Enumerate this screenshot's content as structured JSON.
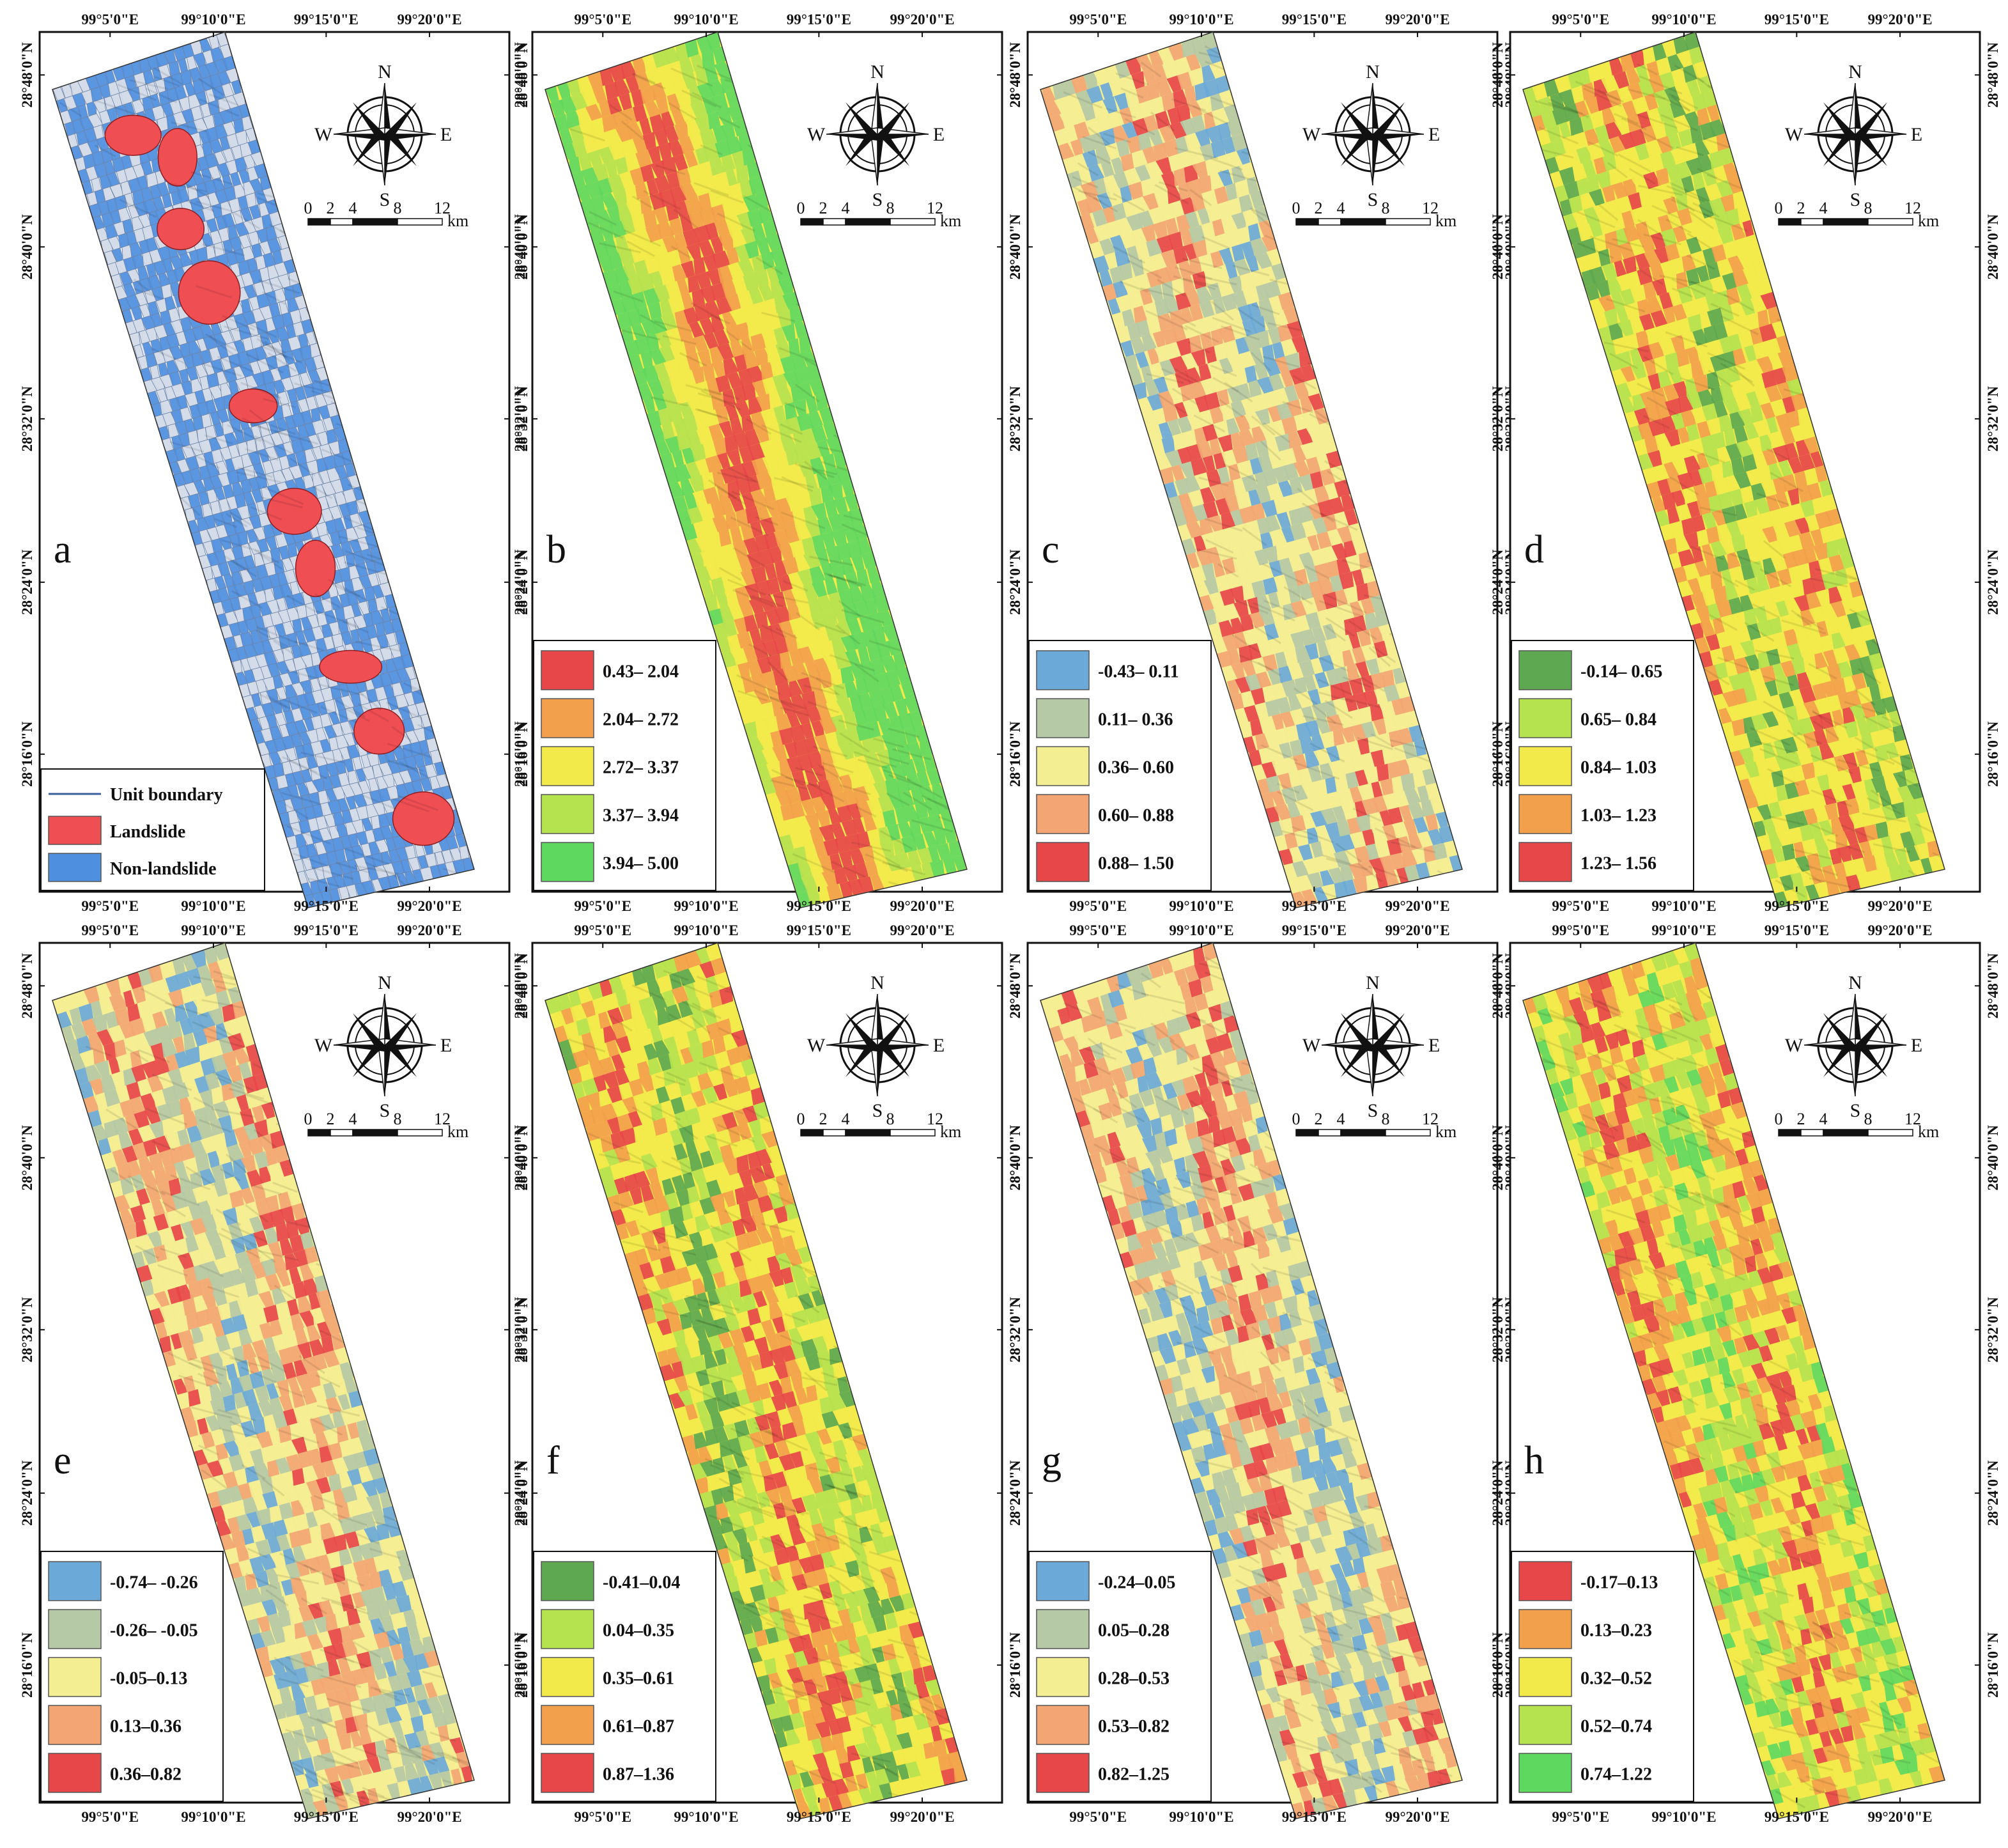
{
  "figure": {
    "lon_ticks": [
      "99°5'0\"E",
      "99°10'0\"E",
      "99°15'0\"E",
      "99°20'0\"E"
    ],
    "lat_ticks": [
      "28°48'0\"N",
      "28°40'0\"N",
      "28°32'0\"N",
      "28°24'0\"N",
      "28°16'0\"N"
    ],
    "compass": {
      "n": "N",
      "s": "S",
      "e": "E",
      "w": "W"
    },
    "scale_bar": {
      "labels": [
        "0",
        "2",
        "4",
        "8",
        "12"
      ],
      "unit": "km"
    }
  },
  "colors": {
    "red": "#e8474a",
    "orange": "#f3a04c",
    "yellow": "#f2ea4b",
    "lime": "#b5e24f",
    "green": "#5fd85f",
    "dark_green": "#5da850",
    "blue": "#6aa9d8",
    "sage": "#b5c9a6",
    "pale_yellow": "#f4ee93",
    "salmon": "#f3a673",
    "unit_blue": "#4f8fe0",
    "landslide_red": "#ef4e53"
  },
  "panels": [
    {
      "letter": "a",
      "style": "units",
      "legend": [
        {
          "label": "Unit boundary",
          "symbol": "line",
          "color": "#3a5f9a"
        },
        {
          "label": "Landslide",
          "symbol": "box",
          "color": "#ef4e53"
        },
        {
          "label": "Non-landslide",
          "symbol": "box",
          "color": "#4f8fe0"
        }
      ]
    },
    {
      "letter": "b",
      "style": "bands",
      "legend": [
        {
          "label": "0.43– 2.04",
          "color": "#e8474a"
        },
        {
          "label": "2.04– 2.72",
          "color": "#f3a04c"
        },
        {
          "label": "2.72– 3.37",
          "color": "#f2ea4b"
        },
        {
          "label": "3.37– 3.94",
          "color": "#b5e24f"
        },
        {
          "label": "3.94– 5.00",
          "color": "#5fd85f"
        }
      ]
    },
    {
      "letter": "c",
      "style": "mosaic",
      "legend": [
        {
          "label": "-0.43– 0.11",
          "color": "#6aa9d8"
        },
        {
          "label": "0.11– 0.36",
          "color": "#b5c9a6"
        },
        {
          "label": "0.36– 0.60",
          "color": "#f4ee93"
        },
        {
          "label": "0.60– 0.88",
          "color": "#f3a673"
        },
        {
          "label": "0.88– 1.50",
          "color": "#e8474a"
        }
      ]
    },
    {
      "letter": "d",
      "style": "mosaic",
      "legend": [
        {
          "label": "-0.14– 0.65",
          "color": "#5da850"
        },
        {
          "label": "0.65– 0.84",
          "color": "#b5e24f"
        },
        {
          "label": "0.84– 1.03",
          "color": "#f2ea4b"
        },
        {
          "label": "1.03– 1.23",
          "color": "#f3a04c"
        },
        {
          "label": "1.23– 1.56",
          "color": "#e8474a"
        }
      ]
    },
    {
      "letter": "e",
      "style": "mosaic",
      "legend": [
        {
          "label": "-0.74– -0.26",
          "color": "#6aa9d8"
        },
        {
          "label": "-0.26– -0.05",
          "color": "#b5c9a6"
        },
        {
          "label": "-0.05–0.13",
          "color": "#f4ee93"
        },
        {
          "label": "0.13–0.36",
          "color": "#f3a673"
        },
        {
          "label": "0.36–0.82",
          "color": "#e8474a"
        }
      ]
    },
    {
      "letter": "f",
      "style": "mosaic",
      "legend": [
        {
          "label": "-0.41–0.04",
          "color": "#5da850"
        },
        {
          "label": "0.04–0.35",
          "color": "#b5e24f"
        },
        {
          "label": "0.35–0.61",
          "color": "#f2ea4b"
        },
        {
          "label": "0.61–0.87",
          "color": "#f3a04c"
        },
        {
          "label": "0.87–1.36",
          "color": "#e8474a"
        }
      ]
    },
    {
      "letter": "g",
      "style": "mosaic",
      "legend": [
        {
          "label": "-0.24–0.05",
          "color": "#6aa9d8"
        },
        {
          "label": "0.05–0.28",
          "color": "#b5c9a6"
        },
        {
          "label": "0.28–0.53",
          "color": "#f4ee93"
        },
        {
          "label": "0.53–0.82",
          "color": "#f3a673"
        },
        {
          "label": "0.82–1.25",
          "color": "#e8474a"
        }
      ]
    },
    {
      "letter": "h",
      "style": "mosaic",
      "legend": [
        {
          "label": "-0.17–0.13",
          "color": "#e8474a"
        },
        {
          "label": "0.13–0.23",
          "color": "#f3a04c"
        },
        {
          "label": "0.32–0.52",
          "color": "#f2ea4b"
        },
        {
          "label": "0.52–0.74",
          "color": "#b5e24f"
        },
        {
          "label": "0.74–1.22",
          "color": "#5fd85f"
        }
      ]
    }
  ]
}
